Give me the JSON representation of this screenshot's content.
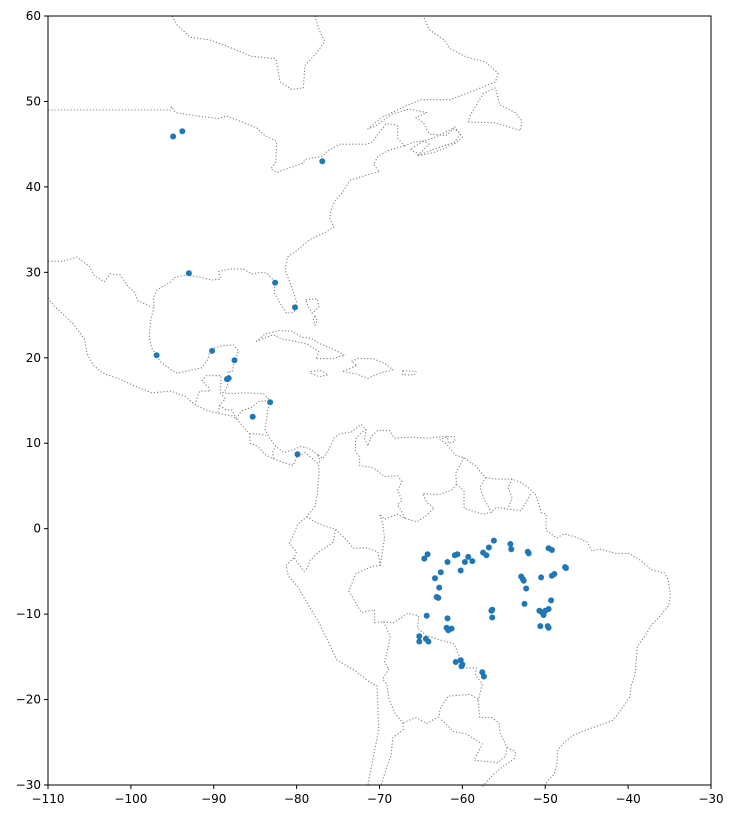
{
  "chart_data": {
    "type": "scatter",
    "xlim": [
      -110,
      -30
    ],
    "ylim": [
      -30,
      60
    ],
    "x_ticks": [
      -110,
      -100,
      -90,
      -80,
      -70,
      -60,
      -50,
      -40,
      -30
    ],
    "y_ticks": [
      -30,
      -20,
      -10,
      0,
      10,
      20,
      30,
      40,
      50,
      60
    ],
    "x_tick_labels": [
      "−110",
      "−100",
      "−90",
      "−80",
      "−70",
      "−60",
      "−50",
      "−40",
      "−30"
    ],
    "y_tick_labels": [
      "−30",
      "−20",
      "−10",
      "0",
      "10",
      "20",
      "30",
      "40",
      "50",
      "60"
    ],
    "grid": false,
    "point_color": "#1f77b4",
    "border_color": "#808080",
    "border_style": "dotted",
    "points": [
      [
        -94.9,
        45.9
      ],
      [
        -93.8,
        46.5
      ],
      [
        -76.9,
        43.0
      ],
      [
        -93.0,
        29.9
      ],
      [
        -82.6,
        28.8
      ],
      [
        -80.2,
        25.9
      ],
      [
        -96.9,
        20.3
      ],
      [
        -90.2,
        20.8
      ],
      [
        -87.5,
        19.7
      ],
      [
        -88.2,
        17.6
      ],
      [
        -88.4,
        17.5
      ],
      [
        -83.2,
        14.8
      ],
      [
        -85.3,
        13.1
      ],
      [
        -79.9,
        8.7
      ],
      [
        -64.2,
        -3.0
      ],
      [
        -64.6,
        -3.5
      ],
      [
        -63.3,
        -5.8
      ],
      [
        -62.6,
        -5.1
      ],
      [
        -62.8,
        -6.9
      ],
      [
        -63.1,
        -8.0
      ],
      [
        -62.9,
        -8.1
      ],
      [
        -61.8,
        -3.9
      ],
      [
        -60.6,
        -3.0
      ],
      [
        -60.9,
        -3.1
      ],
      [
        -60.2,
        -4.9
      ],
      [
        -59.7,
        -3.9
      ],
      [
        -59.3,
        -3.3
      ],
      [
        -58.8,
        -3.8
      ],
      [
        -57.5,
        -2.8
      ],
      [
        -57.1,
        -3.1
      ],
      [
        -56.8,
        -2.2
      ],
      [
        -56.2,
        -1.4
      ],
      [
        -54.2,
        -1.8
      ],
      [
        -54.1,
        -2.4
      ],
      [
        -52.1,
        -2.7
      ],
      [
        -52.0,
        -2.9
      ],
      [
        -52.9,
        -5.6
      ],
      [
        -52.7,
        -5.9
      ],
      [
        -52.6,
        -6.1
      ],
      [
        -52.3,
        -7.0
      ],
      [
        -52.5,
        -8.8
      ],
      [
        -50.5,
        -5.7
      ],
      [
        -49.6,
        -2.3
      ],
      [
        -49.2,
        -2.5
      ],
      [
        -49.2,
        -5.5
      ],
      [
        -48.9,
        -5.3
      ],
      [
        -47.6,
        -4.5
      ],
      [
        -47.5,
        -4.6
      ],
      [
        -49.3,
        -8.4
      ],
      [
        -49.6,
        -9.4
      ],
      [
        -50.0,
        -9.6
      ],
      [
        -50.4,
        -9.8
      ],
      [
        -50.7,
        -9.6
      ],
      [
        -50.2,
        -10.1
      ],
      [
        -50.6,
        -11.4
      ],
      [
        -49.7,
        -11.4
      ],
      [
        -49.6,
        -11.6
      ],
      [
        -56.4,
        -9.5
      ],
      [
        -56.5,
        -9.6
      ],
      [
        -56.4,
        -10.4
      ],
      [
        -64.3,
        -10.2
      ],
      [
        -61.8,
        -10.5
      ],
      [
        -61.9,
        -11.6
      ],
      [
        -61.3,
        -11.7
      ],
      [
        -61.7,
        -11.9
      ],
      [
        -65.2,
        -12.6
      ],
      [
        -65.2,
        -13.2
      ],
      [
        -64.4,
        -12.9
      ],
      [
        -64.1,
        -13.2
      ],
      [
        -60.8,
        -15.6
      ],
      [
        -60.2,
        -15.4
      ],
      [
        -60.0,
        -15.9
      ],
      [
        -60.1,
        -16.1
      ],
      [
        -57.6,
        -16.8
      ],
      [
        -57.4,
        -17.3
      ]
    ]
  }
}
